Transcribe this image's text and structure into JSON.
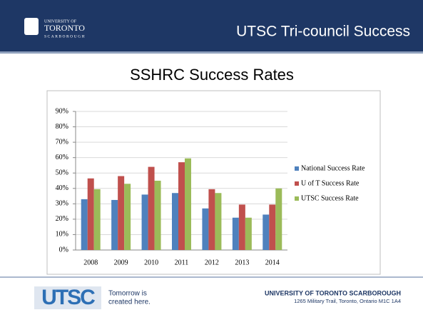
{
  "header": {
    "logo": [
      "UNIVERSITY OF",
      "TORONTO",
      "SCARBOROUGH"
    ],
    "title": "UTSC Tri-council Success"
  },
  "chart_data": {
    "type": "bar",
    "title": "SSHRC Success Rates",
    "categories": [
      "2008",
      "2009",
      "2010",
      "2011",
      "2012",
      "2013",
      "2014"
    ],
    "series": [
      {
        "name": "National Success Rate",
        "color": "#4f81bd",
        "values": [
          33,
          32.5,
          36,
          37,
          27,
          21,
          23
        ]
      },
      {
        "name": "U of T Success Rate",
        "color": "#c0504d",
        "values": [
          46.5,
          48,
          54,
          57,
          39.5,
          29.5,
          29.5
        ]
      },
      {
        "name": "UTSC Success Rate",
        "color": "#9bbb59",
        "values": [
          39.5,
          43,
          45,
          59.5,
          37,
          21,
          40
        ]
      }
    ],
    "ylim": [
      0,
      90
    ],
    "yticks": [
      {
        "value": 0,
        "label": "0%"
      },
      {
        "value": 10,
        "label": "10%"
      },
      {
        "value": 20,
        "label": "20%"
      },
      {
        "value": 30,
        "label": "30%"
      },
      {
        "value": 40,
        "label": "40%"
      },
      {
        "value": 50,
        "label": "50%"
      },
      {
        "value": 60,
        "label": "60%"
      },
      {
        "value": 70,
        "label": "70%"
      },
      {
        "value": 80,
        "label": "80%"
      },
      {
        "value": 90,
        "label": "90%"
      }
    ],
    "grid": true,
    "legend": "right"
  },
  "footer": {
    "logo": "UTSC",
    "tagline": [
      "Tomorrow is",
      "created here."
    ],
    "org": "UNIVERSITY OF TORONTO SCARBOROUGH",
    "address": "1265 Military Trail, Toronto, Ontario  M1C 1A4"
  }
}
